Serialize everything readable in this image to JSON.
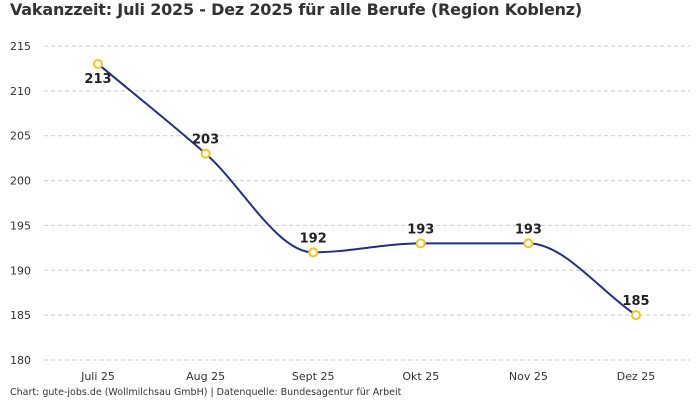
{
  "chart_data": {
    "type": "line",
    "title": "Vakanzzeit: Juli 2025 - Dez 2025 für alle Berufe (Region Koblenz)",
    "categories": [
      "Juli 25",
      "Aug 25",
      "Sept 25",
      "Okt 25",
      "Nov 25",
      "Dez 25"
    ],
    "values": [
      213,
      203,
      192,
      193,
      193,
      185
    ],
    "xlabel": "",
    "ylabel": "",
    "ylim": [
      180,
      215
    ],
    "yticks": [
      180,
      185,
      190,
      195,
      200,
      205,
      210,
      215
    ],
    "grid": true,
    "curve": "smooth",
    "line_color": "#1f2f8f",
    "marker_color": "#f5c518",
    "data_labels": true
  },
  "footer": "Chart: gute-jobs.de (Wollmilchsau GmbH) | Datenquelle: Bundesagentur für Arbeit"
}
